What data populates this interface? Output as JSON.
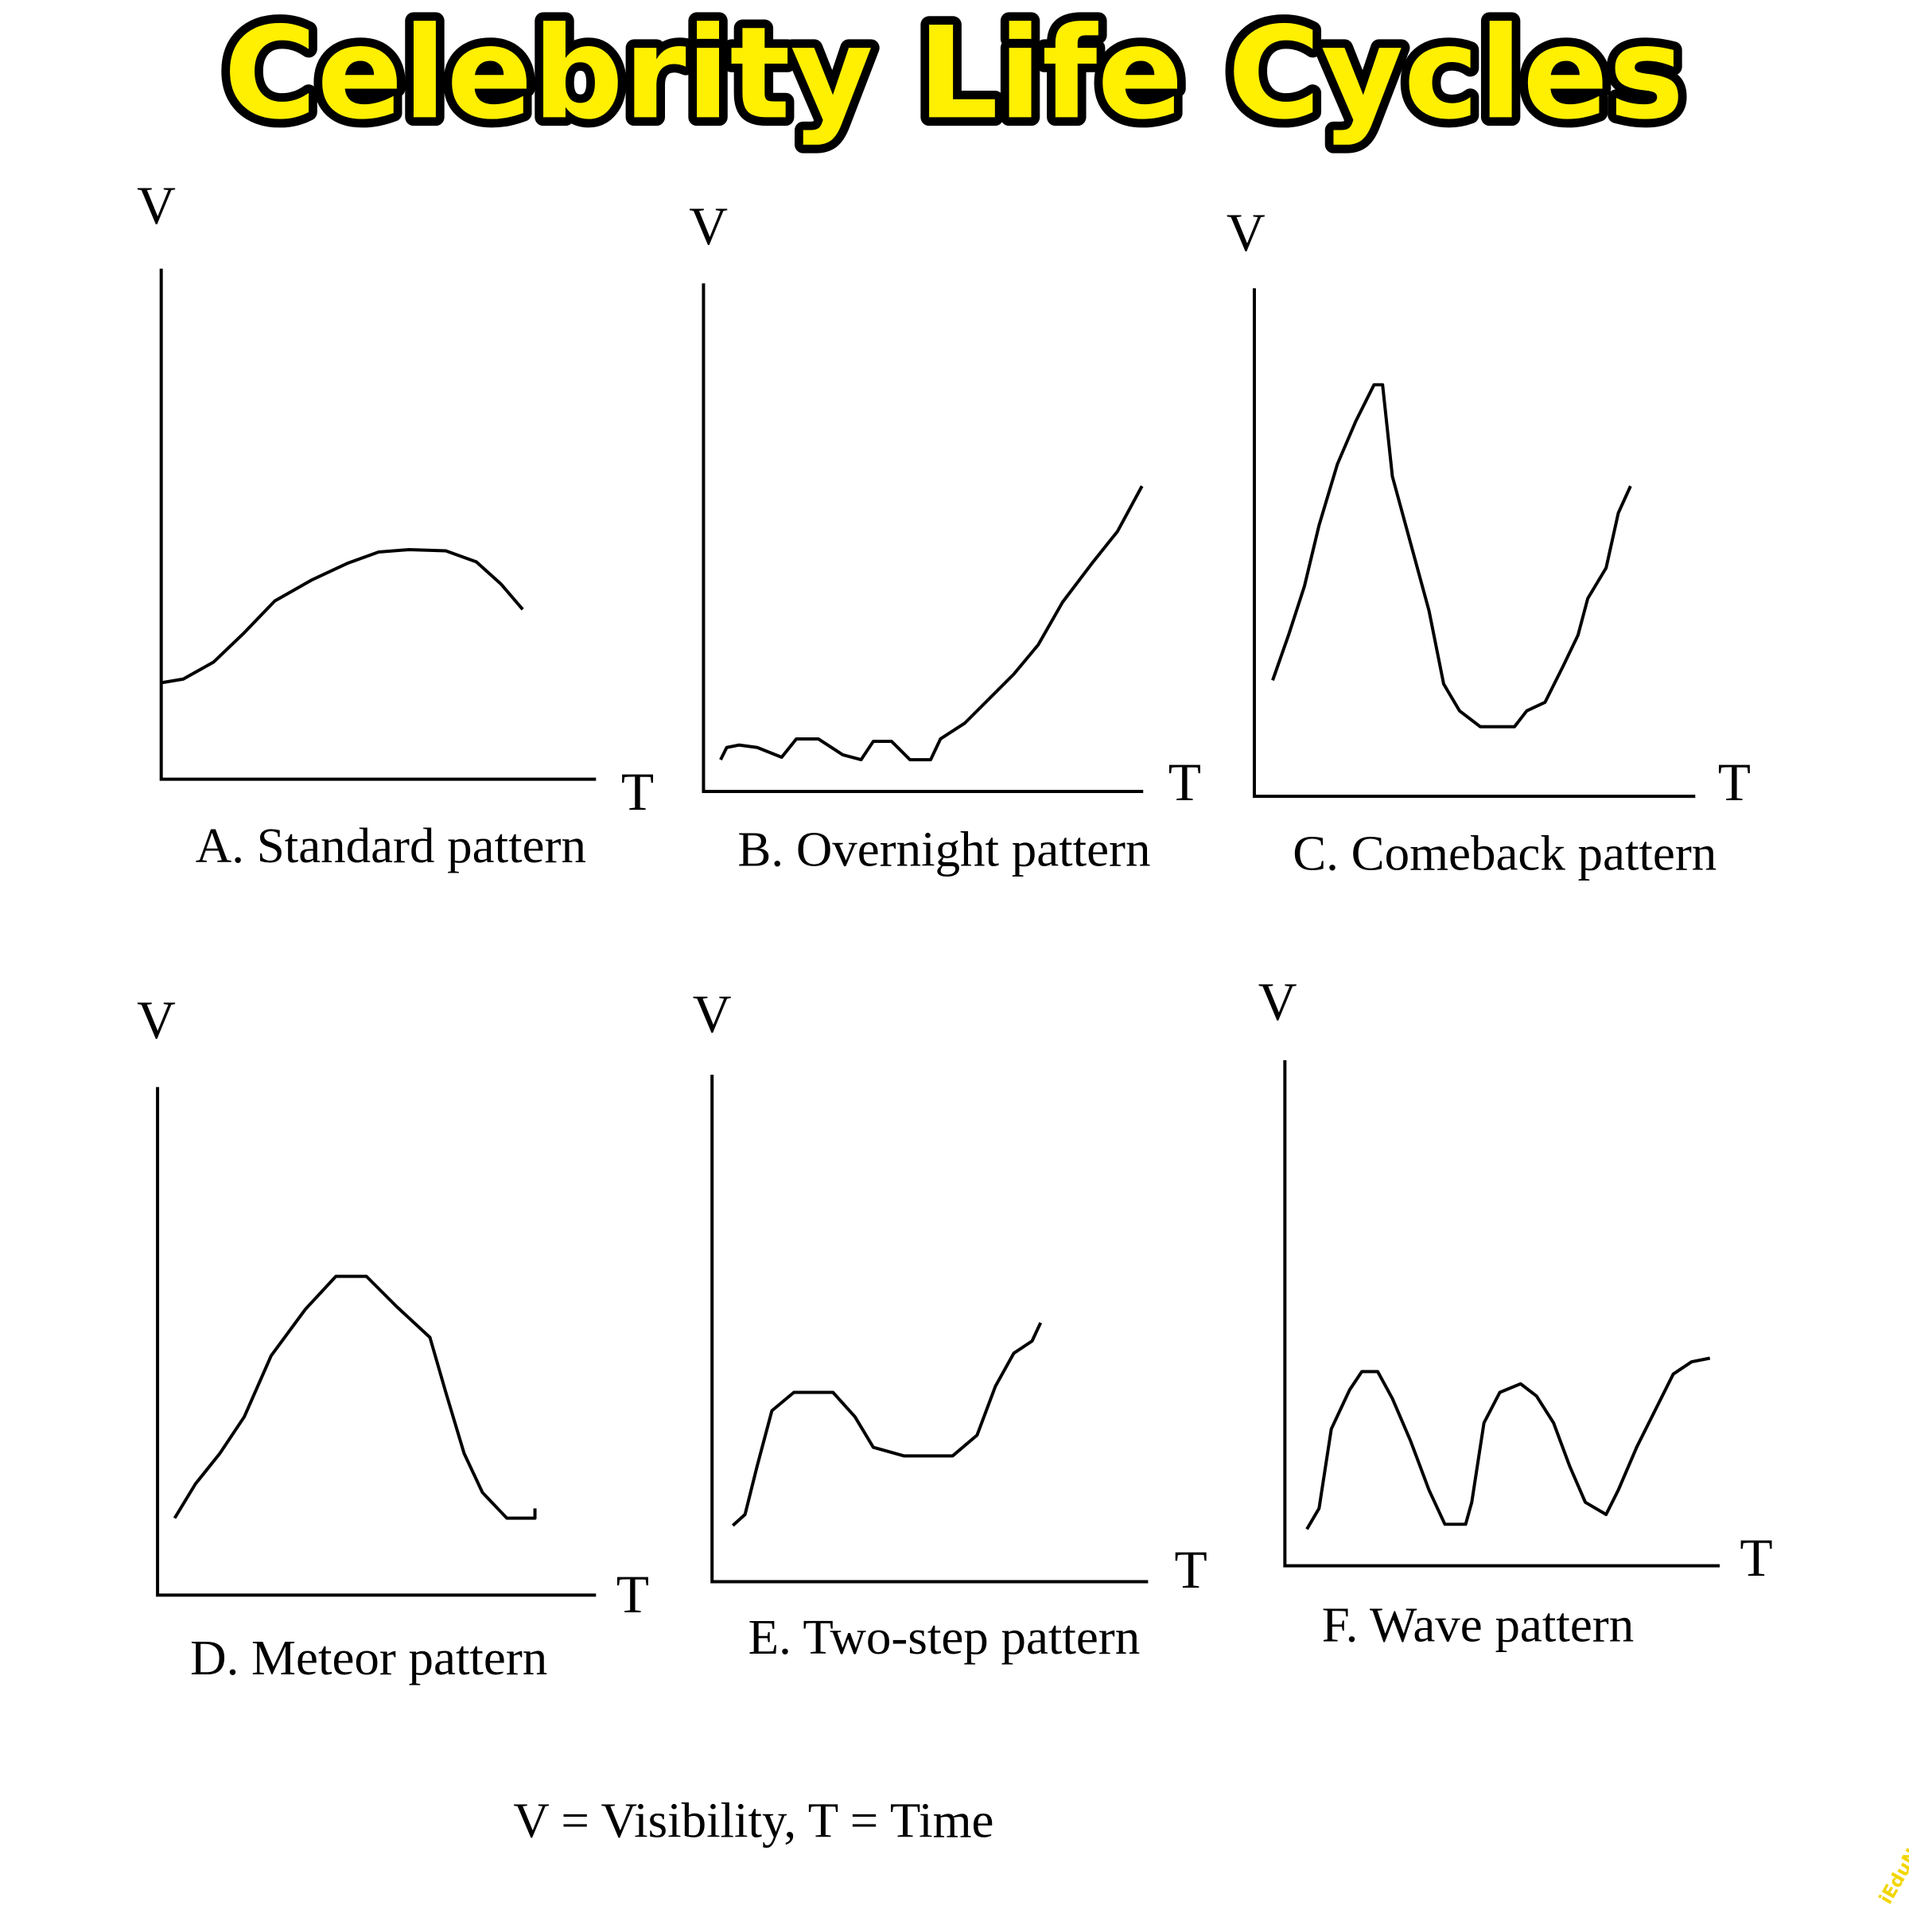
{
  "title": "Celebrity Life Cycles",
  "panels": [
    {
      "y_label": "V",
      "x_label": "T",
      "caption": "A. Standard pattern"
    },
    {
      "y_label": "V",
      "x_label": "T",
      "caption": "B. Overnight pattern"
    },
    {
      "y_label": "V",
      "x_label": "T",
      "caption": "C. Comeback pattern"
    },
    {
      "y_label": "V",
      "x_label": "T",
      "caption": "D. Meteor pattern"
    },
    {
      "y_label": "V",
      "x_label": "T",
      "caption": "E. Two-step pattern"
    },
    {
      "y_label": "V",
      "x_label": "T",
      "caption": "F. Wave pattern"
    }
  ],
  "legend": "V = Visibility, T = Time",
  "watermark": "iEduNote"
}
